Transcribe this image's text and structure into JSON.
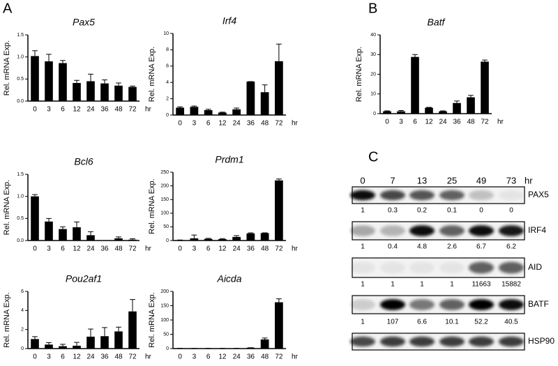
{
  "panel_labels": [
    "A",
    "B",
    "C"
  ],
  "chart_data": [
    {
      "type": "bar",
      "title": "Pax5",
      "ylabel": "Rel. mRNA Exp.",
      "x_unit": "hr",
      "color": "#000000",
      "categories": [
        "0",
        "3",
        "6",
        "12",
        "24",
        "36",
        "48",
        "72"
      ],
      "values": [
        1.02,
        0.9,
        0.86,
        0.41,
        0.45,
        0.4,
        0.35,
        0.32
      ],
      "errors": [
        0.12,
        0.16,
        0.06,
        0.06,
        0.16,
        0.08,
        0.06,
        0.02
      ],
      "ylim": [
        0,
        1.5
      ],
      "yticks": [
        {
          "value": 0,
          "label": "0.0"
        },
        0.5,
        {
          "value": 1,
          "label": "1.0"
        },
        1.5
      ]
    },
    {
      "type": "bar",
      "title": "Irf4",
      "ylabel": "Rel. mRNA Exp.",
      "x_unit": "hr",
      "color": "#000000",
      "categories": [
        "0",
        "3",
        "6",
        "12",
        "24",
        "36",
        "48",
        "72"
      ],
      "values": [
        0.9,
        1.0,
        0.6,
        0.3,
        0.7,
        4.1,
        2.8,
        6.6
      ],
      "errors": [
        0.1,
        0.1,
        0.1,
        0.05,
        0.15,
        0,
        0.9,
        2.1
      ],
      "ylim": [
        0,
        10
      ],
      "yticks": [
        0,
        2,
        4,
        6,
        8,
        10
      ]
    },
    {
      "type": "bar",
      "title": "Batf",
      "ylabel": "Rel. mRNA Exp.",
      "x_unit": "hr",
      "color": "#000000",
      "categories": [
        "0",
        "3",
        "6",
        "12",
        "24",
        "36",
        "48",
        "72"
      ],
      "values": [
        1.2,
        1.2,
        28.8,
        3,
        1.2,
        5.4,
        8.3,
        26.4
      ],
      "errors": [
        0.2,
        0.4,
        1.2,
        0.2,
        0.2,
        1,
        1,
        0.8
      ],
      "ylim": [
        0,
        40
      ],
      "yticks": [
        0,
        10,
        20,
        30,
        40
      ]
    },
    {
      "type": "bar",
      "title": "Bcl6",
      "ylabel": "Rel. mRNA Exp.",
      "x_unit": "hr",
      "color": "#000000",
      "categories": [
        "0",
        "3",
        "6",
        "12",
        "24",
        "36",
        "48",
        "72"
      ],
      "values": [
        1.0,
        0.43,
        0.26,
        0.3,
        0.12,
        0,
        0.05,
        0.02
      ],
      "errors": [
        0.04,
        0.07,
        0.05,
        0.12,
        0.08,
        0,
        0.03,
        0.02
      ],
      "ylim": [
        0,
        1.5
      ],
      "yticks": [
        {
          "value": 0,
          "label": "0.0"
        },
        0.5,
        {
          "value": 1,
          "label": "1.0"
        },
        1.5
      ]
    },
    {
      "type": "bar",
      "title": "Prdm1",
      "ylabel": "Rel. mRNA Exp.",
      "x_unit": "hr",
      "color": "#000000",
      "categories": [
        "0",
        "3",
        "6",
        "12",
        "24",
        "36",
        "48",
        "72"
      ],
      "values": [
        1,
        8,
        6,
        5,
        13,
        26,
        27,
        220
      ],
      "errors": [
        1,
        12,
        2,
        2,
        5,
        2,
        1,
        5
      ],
      "ylim": [
        0,
        250
      ],
      "yticks": [
        0,
        50,
        100,
        150,
        200,
        250
      ]
    },
    {
      "type": "bar",
      "title": "Pou2af1",
      "ylabel": "Rel. mRNA Exp.",
      "x_unit": "hr",
      "color": "#000000",
      "categories": [
        "0",
        "3",
        "6",
        "12",
        "24",
        "36",
        "48",
        "72"
      ],
      "values": [
        1.0,
        0.42,
        0.25,
        0.3,
        1.25,
        1.3,
        1.8,
        3.9
      ],
      "errors": [
        0.25,
        0.2,
        0.2,
        0.35,
        0.8,
        0.9,
        0.45,
        1.25
      ],
      "ylim": [
        0,
        6
      ],
      "yticks": [
        0,
        2,
        4,
        6
      ]
    },
    {
      "type": "bar",
      "title": "Aicda",
      "ylabel": "Rel. mRNA Exp.",
      "x_unit": "hr",
      "color": "#000000",
      "categories": [
        "0",
        "3",
        "6",
        "12",
        "24",
        "36",
        "48",
        "72"
      ],
      "values": [
        1,
        1,
        1,
        1,
        1,
        3,
        32,
        162
      ],
      "errors": [
        0,
        0,
        0,
        0,
        0,
        0,
        5,
        12
      ],
      "ylim": [
        0,
        200
      ],
      "yticks": [
        0,
        50,
        100,
        150,
        200
      ]
    }
  ],
  "blot": {
    "time_labels": [
      "0",
      "7",
      "13",
      "25",
      "49",
      "73"
    ],
    "time_unit": "hr",
    "rows": [
      {
        "name": "PAX5",
        "quant": [
          1,
          0.3,
          0.2,
          0.1,
          0,
          0
        ]
      },
      {
        "name": "IRF4",
        "quant": [
          1,
          0.4,
          4.8,
          2.6,
          6.7,
          6.2
        ]
      },
      {
        "name": "AID",
        "quant": [
          1,
          1,
          1,
          1,
          11663,
          15882
        ]
      },
      {
        "name": "BATF",
        "quant": [
          1,
          107,
          6.6,
          10.1,
          52.2,
          40.5
        ]
      },
      {
        "name": "HSP90"
      }
    ]
  }
}
